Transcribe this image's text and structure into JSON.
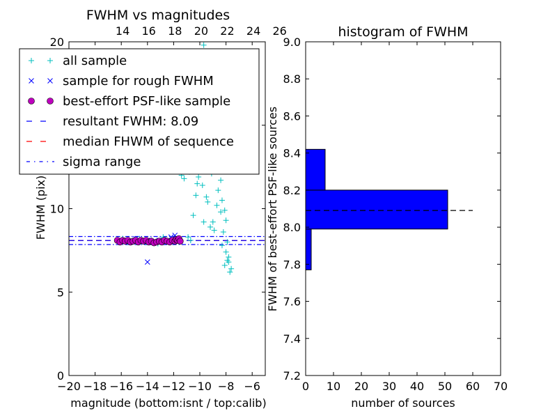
{
  "colors": {
    "all_sample": "#00bfbf",
    "rough_sample": "#0000ff",
    "psf_face": "#bf00bf",
    "resultant_line": "#0000ff",
    "median_line": "#ff0000",
    "sigma_line": "#0000ff",
    "hist_bar": "#0000ff",
    "hist_median_line": "#000000"
  },
  "chart_data": [
    {
      "type": "scatter",
      "title": "FWHM vs magnitudes",
      "xlabel": "magnitude (bottom:isnt / top:calib)",
      "ylabel": "FWHM (pix)",
      "xlim": [
        -20,
        -5
      ],
      "ylim": [
        0,
        20
      ],
      "xticks": [
        "−20",
        "−18",
        "−16",
        "−14",
        "−12",
        "−10",
        "−8",
        "−6"
      ],
      "xtick_values": [
        -20,
        -18,
        -16,
        -14,
        -12,
        -10,
        -8,
        -6
      ],
      "top_ticks": [
        "14",
        "16",
        "18",
        "20",
        "22",
        "24",
        "26"
      ],
      "top_tick_values": [
        -15.9,
        -13.9,
        -11.9,
        -9.9,
        -7.9,
        -5.9,
        -3.9
      ],
      "yticks": [
        "0",
        "5",
        "10",
        "15",
        "20"
      ],
      "ytick_values": [
        0,
        5,
        10,
        15,
        20
      ],
      "legend_position": "upper-left",
      "legend": [
        {
          "label": "all sample",
          "marker": "plus"
        },
        {
          "label": "sample for rough FWHM",
          "marker": "x"
        },
        {
          "label": "best-effort PSF-like sample",
          "marker": "circle"
        },
        {
          "label": "resultant FWHM: 8.09",
          "marker": "dashed"
        },
        {
          "label": "median FHWM of sequence",
          "marker": "dashed-red"
        },
        {
          "label": "sigma range",
          "marker": "dashdot"
        }
      ],
      "hlines": {
        "resultant": 8.09,
        "median": 8.09,
        "sigma_low": 7.85,
        "sigma_high": 8.33
      },
      "series": [
        {
          "name": "all sample",
          "x": [
            -16.3,
            -15.9,
            -15.5,
            -15.0,
            -14.6,
            -14.1,
            -13.7,
            -13.2,
            -12.8,
            -12.3,
            -11.9,
            -11.6,
            -11.4,
            -11.2,
            -11.0,
            -10.8,
            -10.6,
            -10.4,
            -10.2,
            -10.0,
            -9.8,
            -9.6,
            -9.4,
            -9.2,
            -9.0,
            -8.8,
            -8.6,
            -8.4,
            -8.2,
            -8.0,
            -7.8,
            -7.6,
            -10.9,
            -10.7,
            -10.5,
            -10.3,
            -10.1,
            -9.9,
            -9.7,
            -9.5,
            -9.3,
            -9.1,
            -8.9,
            -8.7,
            -8.5,
            -8.3,
            -8.1,
            -7.9,
            -7.7,
            -10.6,
            -10.2,
            -9.8,
            -9.4,
            -9.0,
            -8.6,
            -8.2,
            -7.8,
            -9.6,
            -9.2,
            -8.8,
            -8.4,
            -8.0,
            -9.3,
            -8.7,
            -8.3,
            -7.9,
            -8.5,
            -8.1,
            -10.4,
            -9.7
          ],
          "y": [
            8.1,
            8.2,
            8.0,
            8.1,
            8.2,
            8.0,
            8.1,
            7.9,
            8.3,
            8.1,
            8.2,
            8.0,
            12.0,
            11.8,
            13.5,
            12.2,
            14.8,
            13.2,
            11.5,
            15.6,
            12.9,
            14.2,
            10.4,
            13.8,
            9.2,
            12.7,
            11.1,
            9.8,
            8.6,
            7.4,
            6.8,
            6.4,
            8.3,
            8.1,
            9.6,
            10.8,
            11.9,
            16.3,
            9.2,
            10.7,
            15.1,
            12.1,
            8.7,
            10.2,
            13.1,
            7.8,
            9.9,
            6.9,
            6.2,
            12.6,
            17.0,
            11.4,
            19.2,
            14.5,
            16.7,
            12.8,
            7.1,
            13.6,
            8.9,
            15.9,
            11.7,
            9.3,
            17.8,
            14.9,
            10.5,
            8.0,
            18.4,
            6.6,
            15.3,
            19.8
          ]
        },
        {
          "name": "sample for rough FWHM",
          "x": [
            -16.2,
            -15.8,
            -15.3,
            -14.9,
            -14.4,
            -14.0,
            -13.5,
            -13.1,
            -12.6,
            -12.2,
            -11.9,
            -11.7,
            -14.0
          ],
          "y": [
            8.1,
            8.0,
            8.1,
            8.2,
            8.0,
            8.1,
            8.0,
            8.1,
            8.0,
            8.3,
            8.4,
            8.2,
            6.8
          ]
        },
        {
          "name": "best-effort PSF-like sample",
          "x": [
            -16.3,
            -16.1,
            -15.9,
            -15.7,
            -15.5,
            -15.3,
            -15.1,
            -14.9,
            -14.7,
            -14.5,
            -14.3,
            -14.1,
            -13.9,
            -13.7,
            -13.5,
            -13.3,
            -13.1,
            -12.9,
            -12.7,
            -12.5,
            -12.3,
            -12.1,
            -11.9,
            -11.8,
            -11.7,
            -11.6,
            -11.5
          ],
          "y": [
            8.1,
            8.0,
            8.1,
            8.05,
            8.1,
            8.0,
            8.05,
            8.1,
            8.0,
            8.1,
            8.05,
            8.1,
            8.0,
            8.05,
            7.95,
            8.0,
            8.05,
            8.0,
            8.1,
            8.05,
            8.0,
            8.1,
            8.05,
            8.15,
            8.1,
            8.2,
            8.05
          ]
        }
      ]
    },
    {
      "type": "bar",
      "orientation": "horizontal",
      "title": "histogram of FWHM",
      "xlabel": "number of sources",
      "ylabel": "FWHM of best-effort PSF-like sources",
      "xlim": [
        0,
        70
      ],
      "ylim": [
        7.2,
        9.0
      ],
      "xticks": [
        "0",
        "10",
        "20",
        "30",
        "40",
        "50",
        "60",
        "70"
      ],
      "xtick_values": [
        0,
        10,
        20,
        30,
        40,
        50,
        60,
        70
      ],
      "yticks": [
        "7.2",
        "7.4",
        "7.6",
        "7.8",
        "8.0",
        "8.2",
        "8.4",
        "8.6",
        "8.8",
        "9.0"
      ],
      "ytick_values": [
        7.2,
        7.4,
        7.6,
        7.8,
        8.0,
        8.2,
        8.4,
        8.6,
        8.8,
        9.0
      ],
      "bins": [
        {
          "from": 7.77,
          "to": 7.99,
          "count": 2
        },
        {
          "from": 7.99,
          "to": 8.2,
          "count": 51
        },
        {
          "from": 8.2,
          "to": 8.42,
          "count": 7
        }
      ],
      "median_line": {
        "y": 8.09,
        "x_from": 0,
        "x_to": 60
      }
    }
  ]
}
